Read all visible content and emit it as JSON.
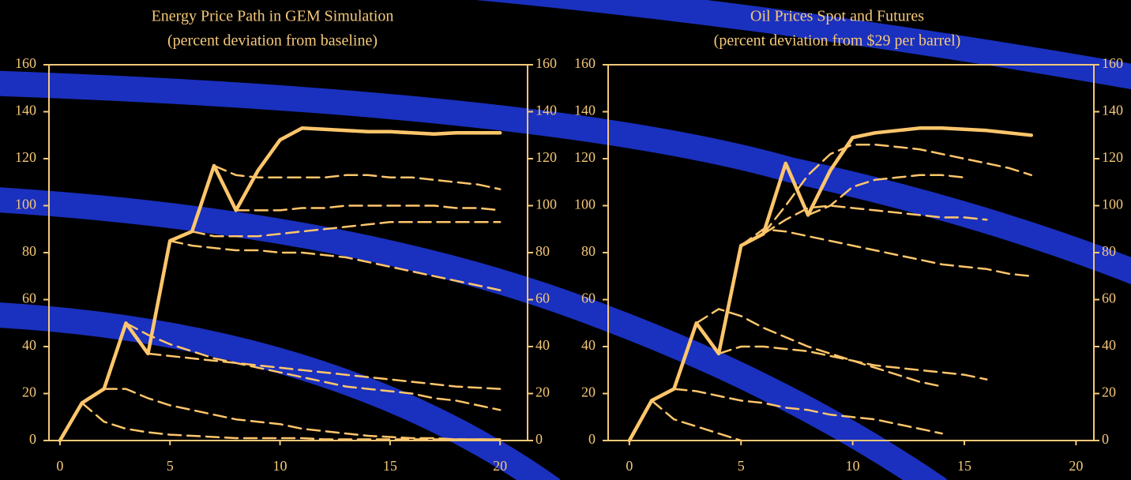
{
  "chart_data": [
    {
      "type": "line",
      "title": "Energy Price Path in GEM Simulation",
      "subtitle": "(percent deviation from baseline)",
      "x": [
        0,
        1,
        2,
        3,
        4,
        5,
        6,
        7,
        8,
        9,
        10,
        11,
        12,
        13,
        14,
        15,
        16,
        17,
        18,
        19,
        20
      ],
      "xlim": [
        -0.5,
        21.25
      ],
      "xticks": [
        0,
        5,
        10,
        15,
        20
      ],
      "ylim": [
        0,
        160
      ],
      "yticks": [
        0,
        20,
        40,
        60,
        80,
        100,
        120,
        140,
        160
      ],
      "y2lim": [
        0,
        160
      ],
      "y2ticks": [
        0,
        20,
        40,
        60,
        80,
        100,
        120,
        140,
        160
      ],
      "series": [
        {
          "color": "#ffc66b",
          "style": "solid",
          "values": [
            0,
            16,
            22,
            50,
            37,
            85,
            89,
            117,
            98,
            115,
            128,
            133,
            132.5,
            132,
            131.5,
            131.5,
            131,
            130.5,
            131,
            131,
            131
          ]
        },
        {
          "color": "#ffc66b",
          "style": "dashed",
          "values": [
            null,
            16,
            8,
            5,
            3.5,
            2.5,
            2,
            1.5,
            1,
            1,
            1,
            1,
            0.5,
            0.5,
            0.5,
            0.5,
            0.5,
            0.5,
            0.5,
            0.5,
            0.5
          ]
        },
        {
          "color": "#ffc66b",
          "style": "dashed",
          "values": [
            null,
            null,
            22,
            22,
            18,
            15,
            13,
            11,
            9,
            8,
            7,
            5,
            4,
            3,
            2,
            1.5,
            1,
            1,
            0.5,
            0.5,
            0.5
          ]
        },
        {
          "color": "#ffc66b",
          "style": "dashed",
          "values": [
            null,
            null,
            null,
            50,
            45,
            41,
            38,
            35,
            33,
            31,
            29,
            27,
            25,
            23,
            22,
            21,
            20,
            18,
            17,
            15,
            13
          ]
        },
        {
          "color": "#ffc66b",
          "style": "dashed",
          "values": [
            null,
            null,
            null,
            null,
            37,
            36,
            35,
            34,
            33,
            32,
            31,
            30,
            29,
            28,
            27,
            26,
            25,
            24,
            23,
            22.5,
            22
          ]
        },
        {
          "color": "#ffc66b",
          "style": "dashed",
          "values": [
            null,
            null,
            null,
            null,
            null,
            85,
            83,
            82,
            81,
            81,
            80,
            80,
            79,
            78,
            76,
            74,
            72,
            70,
            68,
            66,
            64
          ]
        },
        {
          "color": "#ffc66b",
          "style": "dashed",
          "values": [
            null,
            null,
            null,
            null,
            null,
            null,
            89,
            87,
            87,
            87,
            88,
            89,
            90,
            91,
            92,
            93,
            93,
            93,
            93,
            93,
            93
          ]
        },
        {
          "color": "#ffc66b",
          "style": "dashed",
          "values": [
            null,
            null,
            null,
            null,
            null,
            null,
            null,
            null,
            98,
            98,
            98,
            99,
            99,
            100,
            100,
            100,
            100,
            100,
            99,
            99,
            98
          ]
        },
        {
          "color": "#ffc66b",
          "style": "dashed",
          "values": [
            null,
            null,
            null,
            null,
            null,
            null,
            null,
            117,
            113,
            112,
            112,
            112,
            112,
            113,
            113,
            112,
            112,
            111,
            110,
            109,
            107
          ]
        }
      ]
    },
    {
      "type": "line",
      "title": "Oil Prices Spot and Futures",
      "subtitle": "(percent deviation from $29 per barrel)",
      "x": [
        0,
        1,
        2,
        3,
        4,
        5,
        6,
        7,
        8,
        9,
        10,
        11,
        12,
        13,
        14,
        15,
        16,
        17,
        18,
        19,
        20
      ],
      "xlim": [
        -0.95,
        20.8
      ],
      "xticks": [
        0,
        5,
        10,
        15,
        20
      ],
      "ylim": [
        0,
        160
      ],
      "yticks": [
        0,
        20,
        40,
        60,
        80,
        100,
        120,
        140,
        160
      ],
      "y2lim": [
        0,
        160
      ],
      "y2ticks": [
        0,
        20,
        40,
        60,
        80,
        100,
        120,
        140,
        160
      ],
      "series": [
        {
          "color": "#ffc66b",
          "style": "solid",
          "values": [
            0,
            17,
            22,
            50,
            37,
            83,
            88,
            118,
            96,
            115,
            129,
            131,
            132,
            133,
            133,
            132.5,
            132,
            131,
            130,
            null,
            null
          ]
        },
        {
          "color": "#ffc66b",
          "style": "dashed",
          "values": [
            null,
            17,
            9,
            6,
            3,
            0,
            null,
            null,
            null,
            null,
            null,
            null,
            null,
            null,
            null,
            null,
            null,
            null,
            null,
            null,
            null
          ]
        },
        {
          "color": "#ffc66b",
          "style": "dashed",
          "values": [
            null,
            null,
            22,
            21,
            19,
            17,
            16,
            14,
            13,
            11,
            10,
            9,
            7,
            5,
            3,
            null,
            null,
            null,
            null,
            null,
            null
          ]
        },
        {
          "color": "#ffc66b",
          "style": "dashed",
          "values": [
            null,
            null,
            null,
            50,
            56,
            53,
            48,
            44,
            40,
            37,
            34,
            31,
            28,
            25,
            23,
            null,
            null,
            null,
            null,
            null,
            null
          ]
        },
        {
          "color": "#ffc66b",
          "style": "dashed",
          "values": [
            null,
            null,
            null,
            null,
            37,
            40,
            40,
            39,
            38,
            36,
            34,
            32,
            31,
            30,
            29,
            28,
            26,
            null,
            null,
            null,
            null
          ]
        },
        {
          "color": "#ffc66b",
          "style": "dashed",
          "values": [
            null,
            null,
            null,
            null,
            null,
            83,
            90,
            89,
            87,
            85,
            83,
            81,
            79,
            77,
            75,
            74,
            73,
            71,
            70,
            null,
            null
          ]
        },
        {
          "color": "#ffc66b",
          "style": "dashed",
          "values": [
            null,
            null,
            null,
            null,
            null,
            null,
            88,
            94,
            99,
            100,
            99,
            98,
            97,
            96,
            95,
            95,
            94,
            null,
            null,
            null,
            null
          ]
        },
        {
          "color": "#ffc66b",
          "style": "dashed",
          "values": [
            null,
            null,
            null,
            null,
            null,
            null,
            88,
            100,
            113,
            122,
            126,
            126,
            125,
            124,
            122,
            120,
            118,
            116,
            113,
            null,
            null
          ]
        },
        {
          "color": "#ffc66b",
          "style": "dashed",
          "values": [
            null,
            null,
            null,
            null,
            null,
            null,
            null,
            null,
            96,
            100,
            108,
            111,
            112,
            113,
            113,
            112,
            null,
            null,
            null,
            null,
            null
          ]
        }
      ]
    }
  ]
}
